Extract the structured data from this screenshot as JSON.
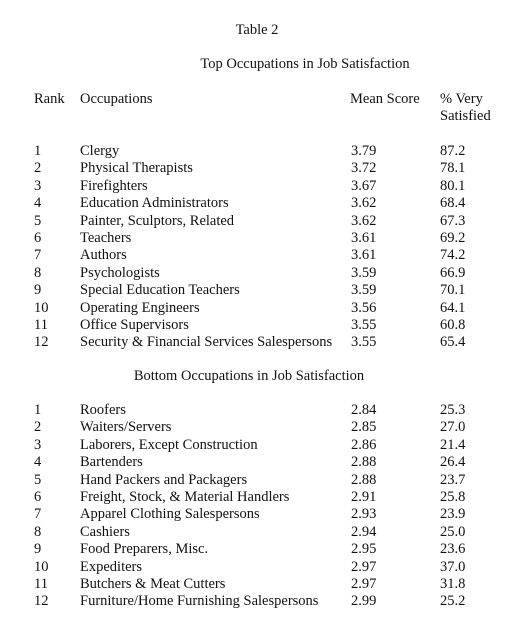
{
  "table_label": "Table 2",
  "top_title": "Top Occupations in Job Satisfaction",
  "bottom_title": "Bottom Occupations in Job Satisfaction",
  "headers": {
    "rank": "Rank",
    "occupations": "Occupations",
    "mean_score": "Mean Score",
    "pct_line1": "% Very",
    "pct_line2": "Satisfied"
  },
  "top_rows": [
    {
      "rank": "1",
      "occupation": "Clergy",
      "mean": "3.79",
      "pct": "87.2"
    },
    {
      "rank": "2",
      "occupation": "Physical Therapists",
      "mean": "3.72",
      "pct": "78.1"
    },
    {
      "rank": "3",
      "occupation": "Firefighters",
      "mean": "3.67",
      "pct": "80.1"
    },
    {
      "rank": "4",
      "occupation": "Education Administrators",
      "mean": "3.62",
      "pct": "68.4"
    },
    {
      "rank": "5",
      "occupation": "Painter, Sculptors, Related",
      "mean": "3.62",
      "pct": "67.3"
    },
    {
      "rank": "6",
      "occupation": "Teachers",
      "mean": "3.61",
      "pct": "69.2"
    },
    {
      "rank": "7",
      "occupation": "Authors",
      "mean": "3.61",
      "pct": "74.2"
    },
    {
      "rank": "8",
      "occupation": "Psychologists",
      "mean": "3.59",
      "pct": "66.9"
    },
    {
      "rank": "9",
      "occupation": "Special Education Teachers",
      "mean": "3.59",
      "pct": "70.1"
    },
    {
      "rank": "10",
      "occupation": "Operating Engineers",
      "mean": "3.56",
      "pct": "64.1"
    },
    {
      "rank": "11",
      "occupation": "Office Supervisors",
      "mean": "3.55",
      "pct": "60.8"
    },
    {
      "rank": "12",
      "occupation": "Security & Financial Services Salespersons",
      "mean": "3.55",
      "pct": "65.4"
    }
  ],
  "bottom_rows": [
    {
      "rank": "1",
      "occupation": "Roofers",
      "mean": "2.84",
      "pct": "25.3"
    },
    {
      "rank": "2",
      "occupation": "Waiters/Servers",
      "mean": "2.85",
      "pct": "27.0"
    },
    {
      "rank": "3",
      "occupation": "Laborers, Except Construction",
      "mean": "2.86",
      "pct": "21.4"
    },
    {
      "rank": "4",
      "occupation": "Bartenders",
      "mean": "2.88",
      "pct": "26.4"
    },
    {
      "rank": "5",
      "occupation": "Hand Packers and Packagers",
      "mean": "2.88",
      "pct": "23.7"
    },
    {
      "rank": "6",
      "occupation": "Freight, Stock, & Material Handlers",
      "mean": "2.91",
      "pct": "25.8"
    },
    {
      "rank": "7",
      "occupation": "Apparel Clothing Salespersons",
      "mean": "2.93",
      "pct": "23.9"
    },
    {
      "rank": "8",
      "occupation": "Cashiers",
      "mean": "2.94",
      "pct": "25.0"
    },
    {
      "rank": "9",
      "occupation": "Food Preparers, Misc.",
      "mean": "2.95",
      "pct": "23.6"
    },
    {
      "rank": "10",
      "occupation": "Expediters",
      "mean": "2.97",
      "pct": "37.0"
    },
    {
      "rank": "11",
      "occupation": "Butchers & Meat Cutters",
      "mean": "2.97",
      "pct": "31.8"
    },
    {
      "rank": "12",
      "occupation": "Furniture/Home Furnishing Salespersons",
      "mean": "2.99",
      "pct": "25.2"
    }
  ]
}
